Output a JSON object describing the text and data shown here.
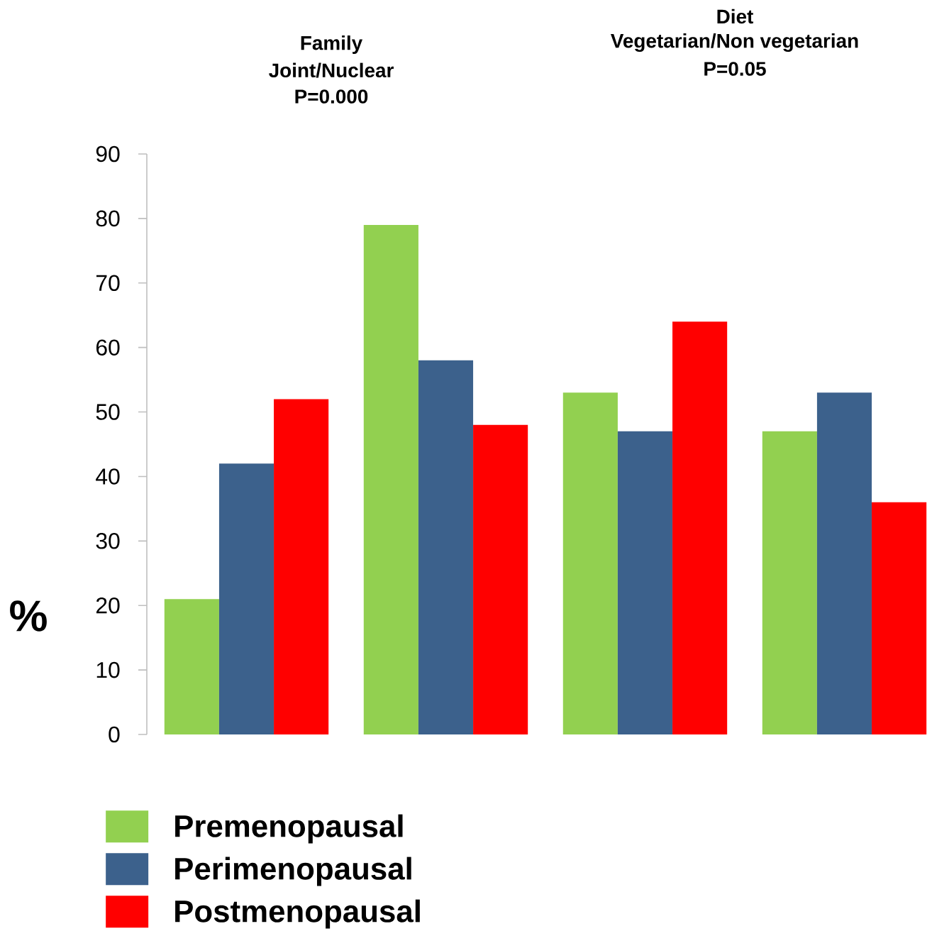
{
  "chart_data": {
    "type": "bar",
    "ylabel": "%",
    "annotations": [
      "Family",
      "Joint/Nuclear",
      "P=0.000",
      "Diet",
      "Vegetarian/Non vegetarian",
      "P=0.05"
    ],
    "categories": [
      null,
      null,
      null,
      null
    ],
    "series": [
      {
        "name": "Premenopausal",
        "color": "#92d050",
        "values": [
          21,
          79,
          53,
          47
        ]
      },
      {
        "name": "Perimenopausal",
        "color": "#3c618c",
        "values": [
          42,
          58,
          47,
          53
        ]
      },
      {
        "name": "Postmenopausal",
        "color": "#ff0000",
        "values": [
          52,
          48,
          64,
          36
        ]
      }
    ],
    "ylim": [
      0,
      90
    ],
    "yticks": [
      0,
      10,
      20,
      30,
      40,
      50,
      60,
      70,
      80,
      90
    ],
    "legend": "bottom left"
  }
}
